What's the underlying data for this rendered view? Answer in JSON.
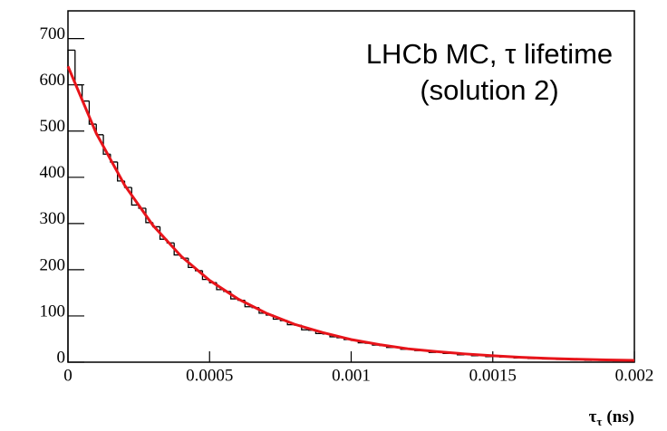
{
  "chart_data": {
    "type": "histogram",
    "annotation": [
      "LHCb MC, τ lifetime",
      "(solution 2)"
    ],
    "x_label": {
      "symbol": "τ",
      "subscript": "τ",
      "unit": "(ns)"
    },
    "bins": [
      0,
      2.5e-05,
      5e-05,
      7.5e-05,
      0.0001,
      0.000125,
      0.00015,
      0.000175,
      0.0002,
      0.000225,
      0.00025,
      0.000275,
      0.0003,
      0.000325,
      0.00035,
      0.000375,
      0.0004,
      0.000425,
      0.00045,
      0.000475,
      0.0005,
      0.000525,
      0.00055,
      0.000575,
      0.0006,
      0.000625,
      0.00065,
      0.000675,
      0.0007,
      0.000725,
      0.00075,
      0.000775,
      0.0008,
      0.000825,
      0.00085,
      0.000875,
      0.0009,
      0.000925,
      0.00095,
      0.000975,
      0.001,
      0.001025,
      0.00105,
      0.001075,
      0.0011,
      0.001125,
      0.00115,
      0.001175,
      0.0012,
      0.001225,
      0.00125,
      0.001275,
      0.0013,
      0.001325,
      0.00135,
      0.001375,
      0.0014,
      0.001425,
      0.00145,
      0.001475,
      0.0015,
      0.001525,
      0.00155,
      0.001575,
      0.0016,
      0.001625,
      0.00165,
      0.001675,
      0.0017,
      0.001725,
      0.00175,
      0.001775,
      0.0018,
      0.001825,
      0.00185,
      0.001875,
      0.0019,
      0.001925,
      0.00195,
      0.001975,
      0.002
    ],
    "values": [
      675,
      600,
      565,
      515,
      492,
      450,
      433,
      392,
      378,
      340,
      333,
      302,
      293,
      266,
      258,
      232,
      225,
      205,
      198,
      179,
      172,
      157,
      153,
      137,
      134,
      120,
      118,
      106,
      102,
      93,
      90,
      81,
      80,
      70,
      69,
      62,
      61,
      55,
      53,
      49,
      47,
      42,
      41,
      37,
      36,
      32,
      32,
      28,
      28,
      25,
      25,
      21,
      22,
      19,
      19,
      16,
      17,
      14,
      15,
      12,
      13,
      11,
      12,
      9,
      10,
      8,
      9,
      7,
      8,
      6,
      7,
      5,
      6,
      4,
      5,
      4,
      5,
      3,
      4,
      3
    ],
    "color": "#000000",
    "fit_line": {
      "color": "#e8141a",
      "x": [
        0,
        0.0001,
        0.0002,
        0.0003,
        0.0004,
        0.0005,
        0.0006,
        0.0007,
        0.0008,
        0.0009,
        0.001,
        0.0011,
        0.0012,
        0.0013,
        0.0014,
        0.0015,
        0.0016,
        0.0017,
        0.0018,
        0.0019,
        0.002
      ],
      "values": [
        640,
        495,
        383,
        296,
        229,
        177,
        137,
        106,
        82,
        64,
        49,
        38,
        29,
        23,
        18,
        14,
        10.6,
        8.2,
        6.4,
        4.9,
        3.8
      ]
    },
    "xlim": [
      0,
      0.002
    ],
    "ylim": [
      0,
      760
    ],
    "xticks": [
      0,
      0.0005,
      0.001,
      0.0015,
      0.002
    ],
    "yticks": [
      0,
      100,
      200,
      300,
      400,
      500,
      600,
      700
    ]
  }
}
